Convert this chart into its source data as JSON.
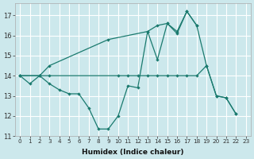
{
  "title": "",
  "xlabel": "Humidex (Indice chaleur)",
  "ylabel": "",
  "background_color": "#cce8ec",
  "grid_color": "#ffffff",
  "line_color": "#1a7a6e",
  "xlim": [
    -0.5,
    23.5
  ],
  "ylim": [
    11,
    17.6
  ],
  "yticks": [
    11,
    12,
    13,
    14,
    15,
    16,
    17
  ],
  "xticks": [
    0,
    1,
    2,
    3,
    4,
    5,
    6,
    7,
    8,
    9,
    10,
    11,
    12,
    13,
    14,
    15,
    16,
    17,
    18,
    19,
    20,
    21,
    22,
    23
  ],
  "series1": [
    [
      0,
      14.0
    ],
    [
      2,
      14.0
    ],
    [
      3,
      14.5
    ],
    [
      9,
      15.8
    ],
    [
      13,
      16.2
    ],
    [
      14,
      16.5
    ],
    [
      15,
      16.6
    ],
    [
      16,
      16.2
    ],
    [
      17,
      17.2
    ],
    [
      18,
      16.5
    ]
  ],
  "series2": [
    [
      0,
      14.0
    ],
    [
      2,
      14.0
    ],
    [
      3,
      14.0
    ],
    [
      10,
      14.0
    ],
    [
      11,
      14.0
    ],
    [
      12,
      14.0
    ],
    [
      13,
      14.0
    ],
    [
      14,
      14.0
    ],
    [
      15,
      14.0
    ],
    [
      16,
      14.0
    ],
    [
      17,
      14.0
    ],
    [
      18,
      14.0
    ],
    [
      19,
      14.5
    ],
    [
      20,
      13.0
    ],
    [
      21,
      12.9
    ],
    [
      22,
      12.1
    ]
  ],
  "series3": [
    [
      0,
      14.0
    ],
    [
      1,
      13.6
    ],
    [
      2,
      14.0
    ],
    [
      3,
      13.6
    ],
    [
      4,
      13.3
    ],
    [
      5,
      13.1
    ],
    [
      6,
      13.1
    ],
    [
      7,
      12.4
    ],
    [
      8,
      11.35
    ],
    [
      9,
      11.35
    ],
    [
      10,
      12.0
    ],
    [
      11,
      13.5
    ],
    [
      12,
      13.4
    ],
    [
      13,
      16.2
    ],
    [
      14,
      14.8
    ],
    [
      15,
      16.6
    ],
    [
      16,
      16.1
    ],
    [
      17,
      17.2
    ],
    [
      18,
      16.5
    ],
    [
      19,
      14.5
    ],
    [
      20,
      13.0
    ],
    [
      21,
      12.9
    ],
    [
      22,
      12.1
    ]
  ]
}
